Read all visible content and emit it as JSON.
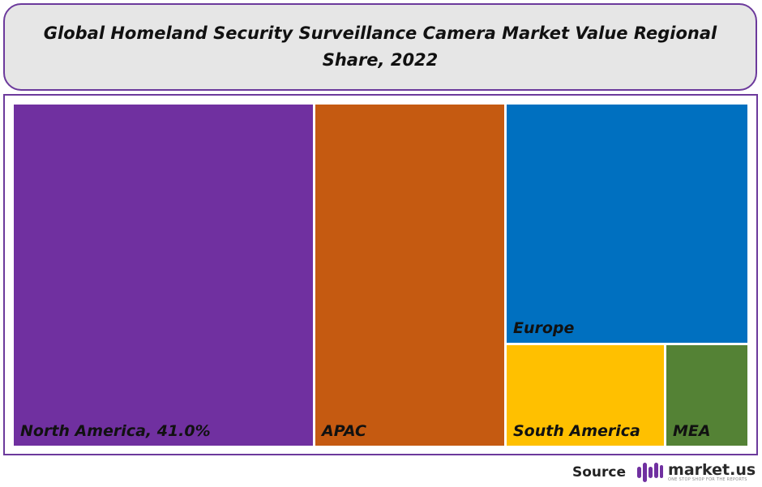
{
  "header": {
    "title": "Global Homeland Security Surveillance Camera Market Value Regional Share, 2022"
  },
  "chart_data": {
    "type": "treemap",
    "title": "Global Homeland Security Surveillance Camera Market Value Regional Share, 2022",
    "series": [
      {
        "name": "North America",
        "value": 41.0,
        "label": "North America, 41.0%",
        "color": "#7030a0"
      },
      {
        "name": "APAC",
        "value": 23.8,
        "label": "APAC",
        "color": "#c55a11"
      },
      {
        "name": "Europe",
        "value": 21.6,
        "label": "Europe",
        "color": "#0070c0"
      },
      {
        "name": "South America",
        "value": 9.4,
        "label": "South America",
        "color": "#ffc000"
      },
      {
        "name": "MEA",
        "value": 4.2,
        "label": "MEA",
        "color": "#548235"
      }
    ],
    "border_color": "#6c3a9c"
  },
  "footer": {
    "source_label": "Source",
    "brand": "market.us",
    "tagline": "ONE STOP SHOP FOR THE REPORTS",
    "logo_icon": "market-us-logo-icon"
  }
}
